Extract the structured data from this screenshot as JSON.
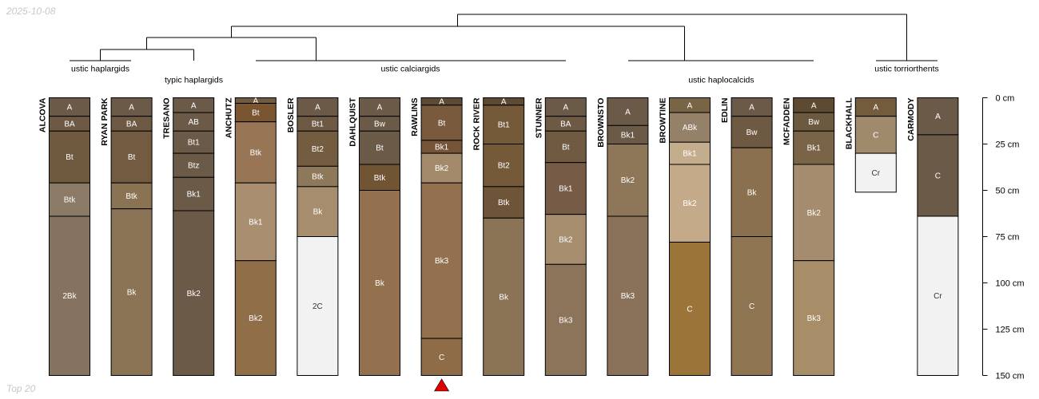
{
  "date": "2025-10-08",
  "caption": "Top 20",
  "depth_axis": {
    "ticks": [
      {
        "depth": 0,
        "label": "0 cm"
      },
      {
        "depth": 25,
        "label": "25 cm"
      },
      {
        "depth": 50,
        "label": "50 cm"
      },
      {
        "depth": 75,
        "label": "75 cm"
      },
      {
        "depth": 100,
        "label": "100 cm"
      },
      {
        "depth": 125,
        "label": "125 cm"
      },
      {
        "depth": 150,
        "label": "150 cm"
      }
    ]
  },
  "groups": [
    {
      "label": "ustic haplargids"
    },
    {
      "label": "typic haplargids"
    },
    {
      "label": "ustic calciargids"
    },
    {
      "label": "ustic haplocalcids"
    },
    {
      "label": "ustic torriorthents"
    }
  ],
  "highlighted_profile": "RAWLINS",
  "marker_color": "#e00000",
  "profiles": [
    {
      "name": "ALCOVA",
      "horizons": [
        {
          "name": "A",
          "top": 0,
          "bottom": 10,
          "color": "#6b5a48"
        },
        {
          "name": "BA",
          "top": 10,
          "bottom": 18,
          "color": "#6e5a44"
        },
        {
          "name": "Bt",
          "top": 18,
          "bottom": 46,
          "color": "#6f5a40"
        },
        {
          "name": "Btk",
          "top": 46,
          "bottom": 64,
          "color": "#8a7a66"
        },
        {
          "name": "2Bk",
          "top": 64,
          "bottom": 150,
          "color": "#857360"
        }
      ]
    },
    {
      "name": "RYAN PARK",
      "horizons": [
        {
          "name": "A",
          "top": 0,
          "bottom": 10,
          "color": "#6b5a48"
        },
        {
          "name": "BA",
          "top": 10,
          "bottom": 18,
          "color": "#6e5a44"
        },
        {
          "name": "Bt",
          "top": 18,
          "bottom": 46,
          "color": "#725b40"
        },
        {
          "name": "Btk",
          "top": 46,
          "bottom": 60,
          "color": "#8a7352"
        },
        {
          "name": "Bk",
          "top": 60,
          "bottom": 150,
          "color": "#8a7455"
        }
      ]
    },
    {
      "name": "TRESANO",
      "horizons": [
        {
          "name": "A",
          "top": 0,
          "bottom": 8,
          "color": "#6b5a48"
        },
        {
          "name": "AB",
          "top": 8,
          "bottom": 18,
          "color": "#6b5a48"
        },
        {
          "name": "Bt1",
          "top": 18,
          "bottom": 30,
          "color": "#6b5a48"
        },
        {
          "name": "Btz",
          "top": 30,
          "bottom": 43,
          "color": "#6b5a48"
        },
        {
          "name": "Bk1",
          "top": 43,
          "bottom": 61,
          "color": "#6b5a48"
        },
        {
          "name": "Bk2",
          "top": 61,
          "bottom": 150,
          "color": "#6b5a48"
        }
      ]
    },
    {
      "name": "ANCHUTZ",
      "horizons": [
        {
          "name": "A",
          "top": 0,
          "bottom": 3,
          "color": "#715a40"
        },
        {
          "name": "Bt",
          "top": 3,
          "bottom": 13,
          "color": "#7a5532"
        },
        {
          "name": "Btk",
          "top": 13,
          "bottom": 46,
          "color": "#987555"
        },
        {
          "name": "Bk1",
          "top": 46,
          "bottom": 88,
          "color": "#a98e70"
        },
        {
          "name": "Bk2",
          "top": 88,
          "bottom": 150,
          "color": "#8f6e48"
        }
      ]
    },
    {
      "name": "BOSLER",
      "horizons": [
        {
          "name": "A",
          "top": 0,
          "bottom": 10,
          "color": "#6b5a48"
        },
        {
          "name": "Bt1",
          "top": 10,
          "bottom": 18,
          "color": "#6e5a44"
        },
        {
          "name": "Bt2",
          "top": 18,
          "bottom": 37,
          "color": "#745c40"
        },
        {
          "name": "Btk",
          "top": 37,
          "bottom": 48,
          "color": "#8e785a"
        },
        {
          "name": "Bk",
          "top": 48,
          "bottom": 75,
          "color": "#a58d6e"
        },
        {
          "name": "2C",
          "top": 75,
          "bottom": 150,
          "color": "#f2f2f2"
        }
      ]
    },
    {
      "name": "DAHLQUIST",
      "horizons": [
        {
          "name": "A",
          "top": 0,
          "bottom": 10,
          "color": "#6b5a48"
        },
        {
          "name": "Bw",
          "top": 10,
          "bottom": 18,
          "color": "#6b5a48"
        },
        {
          "name": "Bt",
          "top": 18,
          "bottom": 36,
          "color": "#6b5a48"
        },
        {
          "name": "Btk",
          "top": 36,
          "bottom": 50,
          "color": "#705434"
        },
        {
          "name": "Bk",
          "top": 50,
          "bottom": 150,
          "color": "#93704e"
        }
      ]
    },
    {
      "name": "RAWLINS",
      "horizons": [
        {
          "name": "A",
          "top": 0,
          "bottom": 4,
          "color": "#5c4a32"
        },
        {
          "name": "Bt",
          "top": 4,
          "bottom": 23,
          "color": "#7a5a3c"
        },
        {
          "name": "Bk1",
          "top": 23,
          "bottom": 30,
          "color": "#755438"
        },
        {
          "name": "Bk2",
          "top": 30,
          "bottom": 46,
          "color": "#a38a6a"
        },
        {
          "name": "Bk3",
          "top": 46,
          "bottom": 130,
          "color": "#93704e"
        },
        {
          "name": "C",
          "top": 130,
          "bottom": 150,
          "color": "#8e6c48"
        }
      ]
    },
    {
      "name": "ROCK RIVER",
      "horizons": [
        {
          "name": "A",
          "top": 0,
          "bottom": 4,
          "color": "#5c4a32"
        },
        {
          "name": "Bt1",
          "top": 4,
          "bottom": 25,
          "color": "#755a3a"
        },
        {
          "name": "Bt2",
          "top": 25,
          "bottom": 48,
          "color": "#755a3a"
        },
        {
          "name": "Btk",
          "top": 48,
          "bottom": 65,
          "color": "#6e5438"
        },
        {
          "name": "Bk",
          "top": 65,
          "bottom": 150,
          "color": "#8a7455"
        }
      ]
    },
    {
      "name": "STUNNER",
      "horizons": [
        {
          "name": "A",
          "top": 0,
          "bottom": 10,
          "color": "#6b5a48"
        },
        {
          "name": "BA",
          "top": 10,
          "bottom": 18,
          "color": "#6e5a44"
        },
        {
          "name": "Bt",
          "top": 18,
          "bottom": 35,
          "color": "#705a42"
        },
        {
          "name": "Bk1",
          "top": 35,
          "bottom": 63,
          "color": "#765b46"
        },
        {
          "name": "Bk2",
          "top": 63,
          "bottom": 90,
          "color": "#a58d6e"
        },
        {
          "name": "Bk3",
          "top": 90,
          "bottom": 150,
          "color": "#8c745a"
        }
      ]
    },
    {
      "name": "BROWNSTO",
      "horizons": [
        {
          "name": "A",
          "top": 0,
          "bottom": 15,
          "color": "#6b5a48"
        },
        {
          "name": "Bk1",
          "top": 15,
          "bottom": 25,
          "color": "#6b5a48"
        },
        {
          "name": "Bk2",
          "top": 25,
          "bottom": 64,
          "color": "#8e7658"
        },
        {
          "name": "Bk3",
          "top": 64,
          "bottom": 150,
          "color": "#897259"
        }
      ]
    },
    {
      "name": "BROWTINE",
      "horizons": [
        {
          "name": "A",
          "top": 0,
          "bottom": 8,
          "color": "#7a6446"
        },
        {
          "name": "ABk",
          "top": 8,
          "bottom": 24,
          "color": "#958068"
        },
        {
          "name": "Bk1",
          "top": 24,
          "bottom": 36,
          "color": "#c3ad8c"
        },
        {
          "name": "Bk2",
          "top": 36,
          "bottom": 78,
          "color": "#c4aa88"
        },
        {
          "name": "C",
          "top": 78,
          "bottom": 150,
          "color": "#9a7438"
        }
      ]
    },
    {
      "name": "EDLIN",
      "horizons": [
        {
          "name": "A",
          "top": 0,
          "bottom": 10,
          "color": "#6b5a48"
        },
        {
          "name": "Bw",
          "top": 10,
          "bottom": 27,
          "color": "#6e5a42"
        },
        {
          "name": "Bk",
          "top": 27,
          "bottom": 75,
          "color": "#8a704e"
        },
        {
          "name": "C",
          "top": 75,
          "bottom": 150,
          "color": "#8e7450"
        }
      ]
    },
    {
      "name": "MCFADDEN",
      "horizons": [
        {
          "name": "A",
          "top": 0,
          "bottom": 8,
          "color": "#5c4a32"
        },
        {
          "name": "Bw",
          "top": 8,
          "bottom": 18,
          "color": "#6b5a40"
        },
        {
          "name": "Bk1",
          "top": 18,
          "bottom": 36,
          "color": "#7a6448"
        },
        {
          "name": "Bk2",
          "top": 36,
          "bottom": 88,
          "color": "#a58c6e"
        },
        {
          "name": "Bk3",
          "top": 88,
          "bottom": 150,
          "color": "#a88e68"
        }
      ]
    },
    {
      "name": "BLACKHALL",
      "horizons": [
        {
          "name": "A",
          "top": 0,
          "bottom": 10,
          "color": "#735c3c"
        },
        {
          "name": "C",
          "top": 10,
          "bottom": 30,
          "color": "#a08a6c"
        },
        {
          "name": "Cr",
          "top": 30,
          "bottom": 51,
          "color": "#f2f2f2"
        }
      ]
    },
    {
      "name": "CARMODY",
      "horizons": [
        {
          "name": "A",
          "top": 0,
          "bottom": 20,
          "color": "#6b5a48"
        },
        {
          "name": "C",
          "top": 20,
          "bottom": 64,
          "color": "#6b5a48"
        },
        {
          "name": "Cr",
          "top": 64,
          "bottom": 150,
          "color": "#f2f2f2"
        }
      ]
    }
  ]
}
